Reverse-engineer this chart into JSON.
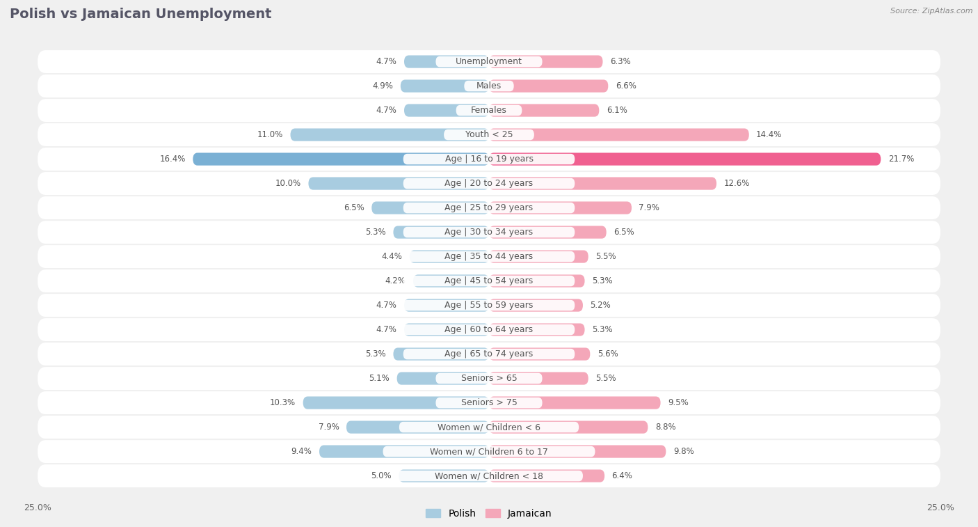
{
  "title": "Polish vs Jamaican Unemployment",
  "source": "Source: ZipAtlas.com",
  "categories": [
    "Unemployment",
    "Males",
    "Females",
    "Youth < 25",
    "Age | 16 to 19 years",
    "Age | 20 to 24 years",
    "Age | 25 to 29 years",
    "Age | 30 to 34 years",
    "Age | 35 to 44 years",
    "Age | 45 to 54 years",
    "Age | 55 to 59 years",
    "Age | 60 to 64 years",
    "Age | 65 to 74 years",
    "Seniors > 65",
    "Seniors > 75",
    "Women w/ Children < 6",
    "Women w/ Children 6 to 17",
    "Women w/ Children < 18"
  ],
  "polish_values": [
    4.7,
    4.9,
    4.7,
    11.0,
    16.4,
    10.0,
    6.5,
    5.3,
    4.4,
    4.2,
    4.7,
    4.7,
    5.3,
    5.1,
    10.3,
    7.9,
    9.4,
    5.0
  ],
  "jamaican_values": [
    6.3,
    6.6,
    6.1,
    14.4,
    21.7,
    12.6,
    7.9,
    6.5,
    5.5,
    5.3,
    5.2,
    5.3,
    5.6,
    5.5,
    9.5,
    8.8,
    9.8,
    6.4
  ],
  "polish_color": "#a8cce0",
  "jamaican_color": "#f4a7b9",
  "polish_color_highlight": "#7ab0d4",
  "jamaican_color_highlight": "#f06090",
  "axis_max": 25.0,
  "background_color": "#f0f0f0",
  "row_bg_color": "#e8e8e8",
  "bar_bg_color": "#ffffff",
  "title_fontsize": 14,
  "label_fontsize": 9,
  "value_fontsize": 8.5,
  "legend_fontsize": 10,
  "title_color": "#555566"
}
